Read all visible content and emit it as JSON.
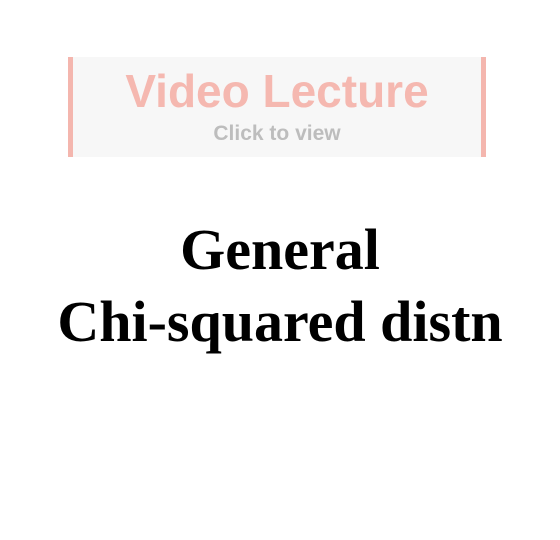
{
  "video_banner": {
    "title": "Video Lecture",
    "subtitle": "Click to view",
    "accent_color": "#f4b6ae",
    "subtitle_color": "#bdbdbd"
  },
  "slide": {
    "title_line1": "General",
    "title_line2": "Chi-squared distn"
  }
}
